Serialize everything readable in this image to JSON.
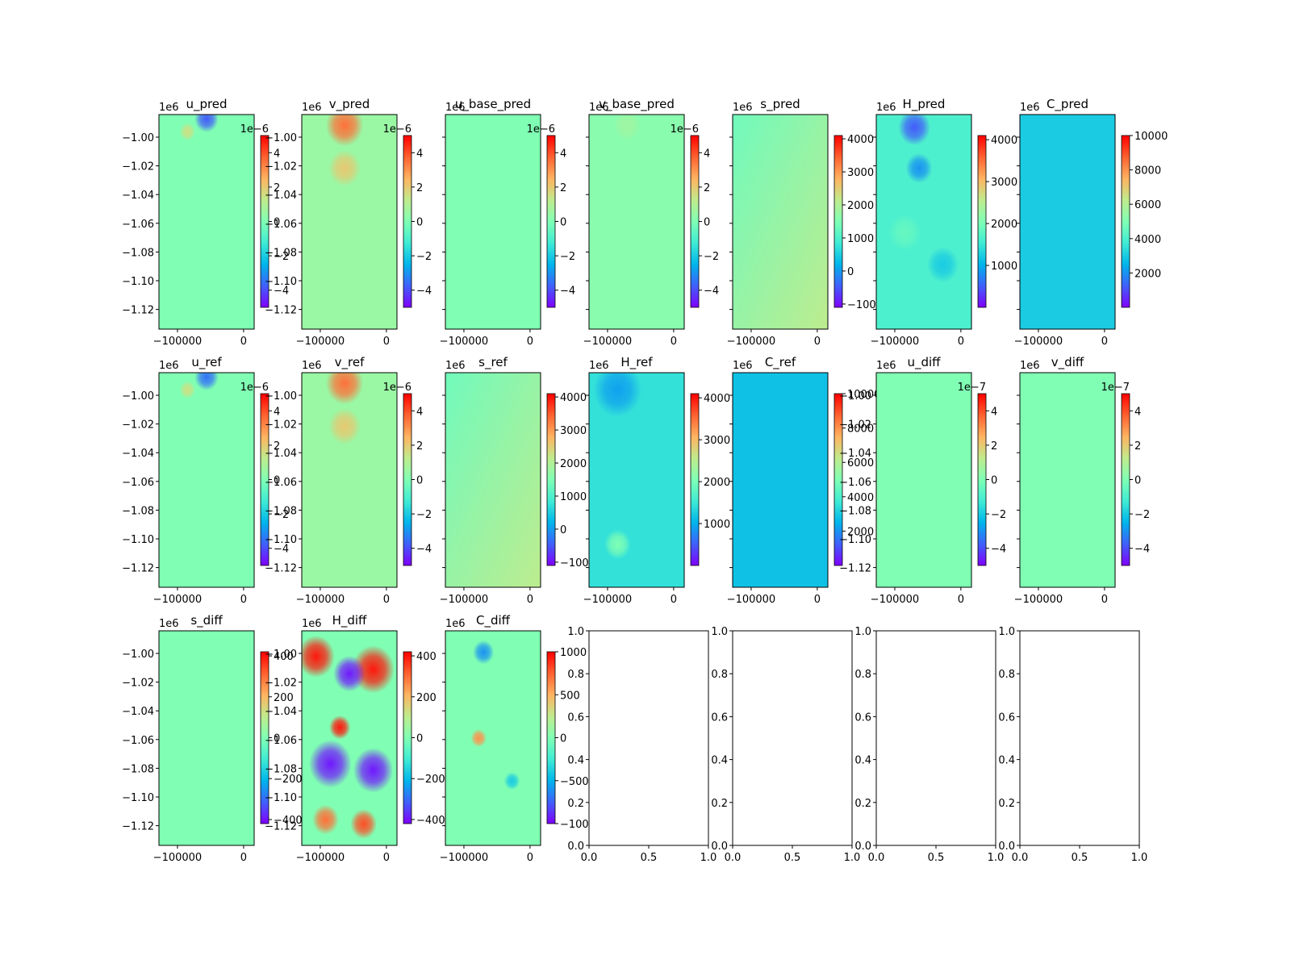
{
  "colors": {
    "colormap": [
      "#8000ff",
      "#4060fb",
      "#00b5eb",
      "#40ecd4",
      "#80ffb4",
      "#c0eb8d",
      "#ffb360",
      "#ff6130",
      "#ff0000"
    ],
    "frame": "#000000",
    "background": "#ffffff"
  },
  "chart_data": [
    {
      "type": "heatmap",
      "title": "u_pred",
      "x_ticks": [
        "−100000",
        "0"
      ],
      "y_ticks": [
        "−1.00",
        "−1.02",
        "−1.04",
        "−1.06",
        "−1.08",
        "−1.10",
        "−1.12"
      ],
      "y_offset": "1e6",
      "colorbar": {
        "ticks": [
          "−4",
          "−2",
          "0",
          "2",
          "4"
        ],
        "range": [
          -5,
          5
        ],
        "offset": "1e−6"
      },
      "base_level": 0.5,
      "features": [
        {
          "cx": 0.5,
          "cy": 0.02,
          "r": 0.09,
          "level": 0.12
        },
        {
          "cx": 0.3,
          "cy": 0.08,
          "r": 0.06,
          "level": 0.65
        }
      ]
    },
    {
      "type": "heatmap",
      "title": "v_pred",
      "x_ticks": [
        "−100000",
        "0"
      ],
      "y_ticks": [
        "−1.00",
        "−1.02",
        "−1.04",
        "−1.06",
        "−1.08",
        "−1.10",
        "−1.12"
      ],
      "y_offset": "1e6",
      "colorbar": {
        "ticks": [
          "−4",
          "−2",
          "0",
          "2",
          "4"
        ],
        "range": [
          -5,
          5
        ],
        "offset": "1e−6"
      },
      "base_level": 0.55,
      "features": [
        {
          "cx": 0.45,
          "cy": 0.05,
          "r": 0.14,
          "level": 0.85
        },
        {
          "cx": 0.45,
          "cy": 0.25,
          "r": 0.12,
          "level": 0.7
        }
      ]
    },
    {
      "type": "heatmap",
      "title": "u_base_pred",
      "x_ticks": [
        "−100000",
        "0"
      ],
      "y_ticks": [],
      "y_offset": "1e6",
      "colorbar": {
        "ticks": [
          "−4",
          "−2",
          "0",
          "2",
          "4"
        ],
        "range": [
          -5,
          5
        ],
        "offset": "1e−6"
      },
      "base_level": 0.5,
      "features": []
    },
    {
      "type": "heatmap",
      "title": "v_base_pred",
      "x_ticks": [
        "−100000",
        "0"
      ],
      "y_ticks": [],
      "y_offset": "1e6",
      "colorbar": {
        "ticks": [
          "−4",
          "−2",
          "0",
          "2",
          "4"
        ],
        "range": [
          -5,
          5
        ],
        "offset": "1e−6"
      },
      "base_level": 0.52,
      "features": [
        {
          "cx": 0.4,
          "cy": 0.05,
          "r": 0.1,
          "level": 0.56
        }
      ]
    },
    {
      "type": "heatmap",
      "title": "s_pred",
      "x_ticks": [
        "−100000",
        "0"
      ],
      "y_ticks": [],
      "y_offset": "1e6",
      "colorbar": {
        "ticks": [
          "−1000",
          "0",
          "1000",
          "2000",
          "3000",
          "4000"
        ],
        "range": [
          -1100,
          4100
        ]
      },
      "base_level": 0.5,
      "gradient": [
        0.47,
        0.62
      ]
    },
    {
      "type": "heatmap",
      "title": "H_pred",
      "x_ticks": [
        "−100000",
        "0"
      ],
      "y_ticks": [],
      "y_offset": "1e6",
      "colorbar": {
        "ticks": [
          "1000",
          "2000",
          "3000",
          "4000"
        ],
        "range": [
          0,
          4100
        ]
      },
      "base_level": 0.4,
      "features": [
        {
          "cx": 0.4,
          "cy": 0.06,
          "r": 0.12,
          "level": 0.12
        },
        {
          "cx": 0.45,
          "cy": 0.25,
          "r": 0.1,
          "level": 0.2
        },
        {
          "cx": 0.3,
          "cy": 0.55,
          "r": 0.12,
          "level": 0.45
        },
        {
          "cx": 0.7,
          "cy": 0.7,
          "r": 0.12,
          "level": 0.3
        }
      ]
    },
    {
      "type": "heatmap",
      "title": "C_pred",
      "x_ticks": [
        "−100000",
        "0"
      ],
      "y_ticks": [],
      "y_offset": "1e6",
      "colorbar": {
        "ticks": [
          "2000",
          "4000",
          "6000",
          "8000",
          "10000"
        ],
        "range": [
          0,
          10000
        ]
      },
      "base_level": 0.3,
      "features": []
    },
    {
      "type": "heatmap",
      "title": "u_ref",
      "x_ticks": [
        "−100000",
        "0"
      ],
      "y_ticks": [
        "−1.00",
        "−1.02",
        "−1.04",
        "−1.06",
        "−1.08",
        "−1.10",
        "−1.12"
      ],
      "y_offset": "1e6",
      "colorbar": {
        "ticks": [
          "−4",
          "−2",
          "0",
          "2",
          "4"
        ],
        "range": [
          -5,
          5
        ],
        "offset": "1e−6"
      },
      "base_level": 0.5,
      "features": [
        {
          "cx": 0.5,
          "cy": 0.02,
          "r": 0.09,
          "level": 0.15
        },
        {
          "cx": 0.3,
          "cy": 0.08,
          "r": 0.06,
          "level": 0.65
        }
      ]
    },
    {
      "type": "heatmap",
      "title": "v_ref",
      "x_ticks": [
        "−100000",
        "0"
      ],
      "y_ticks": [
        "−1.00",
        "−1.02",
        "−1.04",
        "−1.06",
        "−1.08",
        "−1.10",
        "−1.12"
      ],
      "y_offset": "1e6",
      "colorbar": {
        "ticks": [
          "−4",
          "−2",
          "0",
          "2",
          "4"
        ],
        "range": [
          -5,
          5
        ],
        "offset": "1e−6"
      },
      "base_level": 0.55,
      "features": [
        {
          "cx": 0.45,
          "cy": 0.05,
          "r": 0.14,
          "level": 0.85
        },
        {
          "cx": 0.45,
          "cy": 0.25,
          "r": 0.12,
          "level": 0.7
        }
      ]
    },
    {
      "type": "heatmap",
      "title": "s_ref",
      "x_ticks": [
        "−100000",
        "0"
      ],
      "y_ticks": [],
      "y_offset": "1e6",
      "colorbar": {
        "ticks": [
          "−1000",
          "0",
          "1000",
          "2000",
          "3000",
          "4000"
        ],
        "range": [
          -1100,
          4100
        ]
      },
      "base_level": 0.5,
      "gradient": [
        0.47,
        0.62
      ]
    },
    {
      "type": "heatmap",
      "title": "H_ref",
      "x_ticks": [
        "−100000",
        "0"
      ],
      "y_ticks": [],
      "y_offset": "1e6",
      "colorbar": {
        "ticks": [
          "1000",
          "2000",
          "3000",
          "4000"
        ],
        "range": [
          0,
          4100
        ]
      },
      "base_level": 0.35,
      "features": [
        {
          "cx": 0.3,
          "cy": 0.08,
          "r": 0.18,
          "level": 0.22
        },
        {
          "cx": 0.3,
          "cy": 0.8,
          "r": 0.1,
          "level": 0.5
        }
      ]
    },
    {
      "type": "heatmap",
      "title": "C_ref",
      "x_ticks": [
        "−100000",
        "0"
      ],
      "y_ticks": [],
      "y_offset": "1e6",
      "colorbar": {
        "ticks": [
          "2000",
          "4000",
          "6000",
          "8000",
          "10000"
        ],
        "range": [
          0,
          10000
        ]
      },
      "base_level": 0.28,
      "features": []
    },
    {
      "type": "heatmap",
      "title": "u_diff",
      "x_ticks": [
        "−100000",
        "0"
      ],
      "y_ticks": [
        "−1.00",
        "−1.02",
        "−1.04",
        "−1.06",
        "−1.08",
        "−1.10",
        "−1.12"
      ],
      "y_offset": "1e6",
      "colorbar": {
        "ticks": [
          "−4",
          "−2",
          "0",
          "2",
          "4"
        ],
        "range": [
          -5,
          5
        ],
        "offset": "1e−7"
      },
      "base_level": 0.5,
      "features": []
    },
    {
      "type": "heatmap",
      "title": "v_diff",
      "x_ticks": [
        "−100000",
        "0"
      ],
      "y_ticks": [],
      "y_offset": "1e6",
      "colorbar": {
        "ticks": [
          "−4",
          "−2",
          "0",
          "2",
          "4"
        ],
        "range": [
          -5,
          5
        ],
        "offset": "1e−7"
      },
      "base_level": 0.5,
      "features": []
    },
    {
      "type": "heatmap",
      "title": "s_diff",
      "x_ticks": [
        "−100000",
        "0"
      ],
      "y_ticks": [
        "−1.00",
        "−1.02",
        "−1.04",
        "−1.06",
        "−1.08",
        "−1.10",
        "−1.12"
      ],
      "y_offset": "1e6",
      "colorbar": {
        "ticks": [
          "−400",
          "−200",
          "0",
          "200",
          "400"
        ],
        "range": [
          -420,
          420
        ]
      },
      "base_level": 0.5,
      "features": []
    },
    {
      "type": "heatmap",
      "title": "H_diff",
      "x_ticks": [
        "−100000",
        "0"
      ],
      "y_ticks": [
        "−1.00",
        "−1.02",
        "−1.04",
        "−1.06",
        "−1.08",
        "−1.10",
        "−1.12"
      ],
      "y_offset": "1e6",
      "colorbar": {
        "ticks": [
          "−400",
          "−200",
          "0",
          "200",
          "400"
        ],
        "range": [
          -420,
          420
        ]
      },
      "base_level": 0.5,
      "features": [
        {
          "cx": 0.15,
          "cy": 0.12,
          "r": 0.14,
          "level": 0.97
        },
        {
          "cx": 0.75,
          "cy": 0.18,
          "r": 0.16,
          "level": 0.97
        },
        {
          "cx": 0.5,
          "cy": 0.2,
          "r": 0.12,
          "level": 0.03
        },
        {
          "cx": 0.3,
          "cy": 0.62,
          "r": 0.16,
          "level": 0.03
        },
        {
          "cx": 0.75,
          "cy": 0.65,
          "r": 0.15,
          "level": 0.03
        },
        {
          "cx": 0.4,
          "cy": 0.45,
          "r": 0.08,
          "level": 0.97
        },
        {
          "cx": 0.25,
          "cy": 0.88,
          "r": 0.1,
          "level": 0.85
        },
        {
          "cx": 0.65,
          "cy": 0.9,
          "r": 0.1,
          "level": 0.9
        }
      ]
    },
    {
      "type": "heatmap",
      "title": "C_diff",
      "x_ticks": [
        "−100000",
        "0"
      ],
      "y_ticks": [],
      "y_offset": "1e6",
      "colorbar": {
        "ticks": [
          "−1000",
          "−500",
          "0",
          "500",
          "1000"
        ],
        "range": [
          -1000,
          1000
        ]
      },
      "base_level": 0.5,
      "features": [
        {
          "cx": 0.4,
          "cy": 0.1,
          "r": 0.08,
          "level": 0.2
        },
        {
          "cx": 0.35,
          "cy": 0.5,
          "r": 0.06,
          "level": 0.8
        },
        {
          "cx": 0.7,
          "cy": 0.7,
          "r": 0.06,
          "level": 0.3
        }
      ]
    },
    {
      "type": "empty",
      "x_ticks": [
        "0.0",
        "0.5",
        "1.0"
      ],
      "y_ticks": [
        "0.0",
        "0.2",
        "0.4",
        "0.6",
        "0.8",
        "1.0"
      ]
    },
    {
      "type": "empty",
      "x_ticks": [
        "0.0",
        "0.5",
        "1.0"
      ],
      "y_ticks": [
        "0.0",
        "0.2",
        "0.4",
        "0.6",
        "0.8",
        "1.0"
      ]
    },
    {
      "type": "empty",
      "x_ticks": [
        "0.0",
        "0.5",
        "1.0"
      ],
      "y_ticks": [
        "0.0",
        "0.2",
        "0.4",
        "0.6",
        "0.8",
        "1.0"
      ]
    },
    {
      "type": "empty",
      "x_ticks": [
        "0.0",
        "0.5",
        "1.0"
      ],
      "y_ticks": [
        "0.0",
        "0.2",
        "0.4",
        "0.6",
        "0.8",
        "1.0"
      ]
    }
  ]
}
